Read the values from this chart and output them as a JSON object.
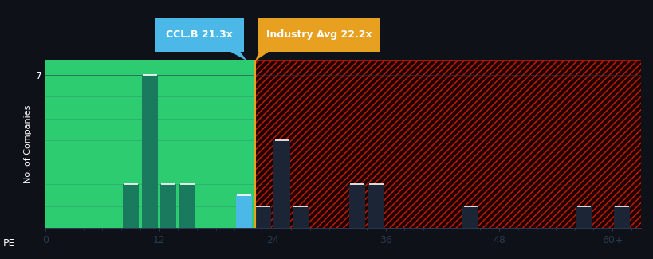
{
  "bg_color": "#0e1117",
  "green_bg_color": "#2ecc71",
  "red_bg_color": "#200000",
  "bar_color_green": "#1a7a5e",
  "bar_color_blue": "#4cb8e8",
  "bar_color_dark": "#1c2535",
  "ylabel": "No. of Companies",
  "ccl_label": "CCL.B 21.3x",
  "industry_label": "Industry Avg 22.2x",
  "ccl_pe": 21.3,
  "industry_pe": 22.2,
  "ccl_label_bg": "#4cb8e8",
  "industry_label_bg": "#e8a020",
  "ytick_val": 7,
  "ylim": [
    0,
    7.7
  ],
  "xlim": [
    0,
    63
  ],
  "xtick_positions": [
    0,
    12,
    24,
    36,
    48,
    60
  ],
  "xtick_labels": [
    "0",
    "12",
    "24",
    "36",
    "48",
    "60+"
  ],
  "bin_starts": [
    8,
    10,
    12,
    14,
    20,
    22,
    24,
    26,
    32,
    34,
    44,
    56,
    60
  ],
  "heights": [
    2,
    7,
    2,
    2,
    1.5,
    1,
    4,
    1,
    2,
    2,
    1,
    1,
    1
  ],
  "is_ccl": [
    false,
    false,
    false,
    false,
    true,
    false,
    false,
    false,
    false,
    false,
    false,
    false,
    false
  ],
  "text_color": "#ffffff",
  "grid_color": "#2a3a50",
  "xlabel_text": "PE",
  "hatch_color": "#cc2200",
  "green_alpha": 1.0,
  "red_hatch_linewidth": 0.5
}
